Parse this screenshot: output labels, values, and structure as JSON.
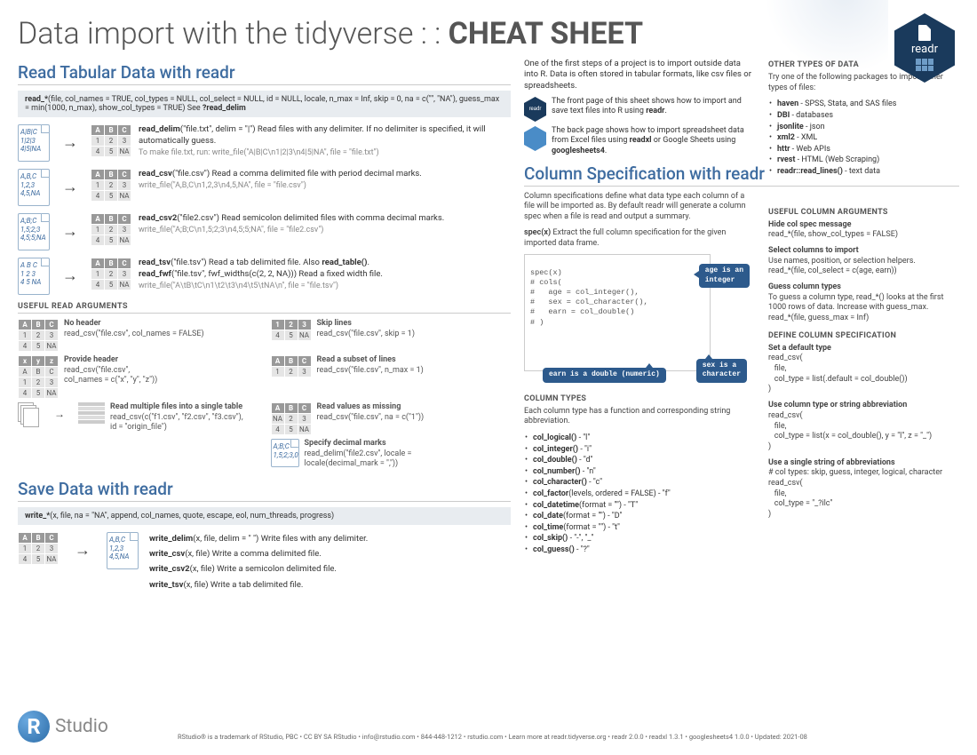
{
  "page": {
    "title_light": "Data import with the tidyverse : : ",
    "title_bold": "CHEAT SHEET"
  },
  "hex": {
    "label": "readr"
  },
  "read_section": {
    "heading": "Read Tabular Data with readr",
    "syntax": {
      "bold": "read_*",
      "rest": "(file, col_names = TRUE, col_types = NULL, col_select = NULL, id = NULL, locale, n_max = Inf, skip = 0, na = c(\"\", \"NA\"), guess_max = min(1000, n_max), show_col_types = TRUE) See ",
      "trail": "?read_delim"
    },
    "rows": [
      {
        "file": "A|B|C\n1|2|3\n4|5|NA",
        "func": "read_delim",
        "args": "(\"file.txt\", delim = \"|\")",
        "desc": " Read files with any delimiter. If no delimiter is specified, it will automatically guess.",
        "sub": "To make file.txt, run: write_file(\"A|B|C\\n1|2|3\\n4|5|NA\", file = \"file.txt\")"
      },
      {
        "file": "A,B,C\n1,2,3\n4,5,NA",
        "func": "read_csv",
        "args": "(\"file.csv\")",
        "desc": " Read a comma delimited file with period decimal marks.",
        "sub": "write_file(\"A,B,C\\n1,2,3\\n4,5,NA\", file = \"file.csv\")"
      },
      {
        "file": "A;B;C\n1,5;2;3\n4,5;5;NA",
        "func": "read_csv2",
        "args": "(\"file2.csv\")",
        "desc": " Read semicolon delimited files with comma decimal marks.",
        "sub": "write_file(\"A;B;C\\n1,5;2;3\\n4,5;5;NA\", file = \"file2.csv\")"
      },
      {
        "file": "A B C\n1 2 3\n4 5 NA",
        "func": "read_tsv",
        "args": "(\"file.tsv\")",
        "desc": " Read a tab delimited file. Also ",
        "extra_bold": "read_table()",
        "extra": ". ",
        "func2": "read_fwf",
        "args2": "(\"file.tsv\", fwf_widths(c(2, 2, NA)))",
        "desc2": " Read a fixed width file.",
        "sub": "write_file(\"A\\tB\\tC\\n1\\t2\\t3\\n4\\t5\\tNA\\n\", file = \"file.tsv\")"
      }
    ]
  },
  "useful_args": {
    "heading": "USEFUL READ ARGUMENTS",
    "left": [
      {
        "title": "No header",
        "code": "read_csv(\"file.csv\", col_names = FALSE)"
      },
      {
        "title": "Provide header",
        "code": "read_csv(\"file.csv\",\n    col_names = c(\"x\", \"y\", \"z\"))"
      },
      {
        "title": "Read multiple files into a single table",
        "code": "read_csv(c(\"f1.csv\", \"f2.csv\", \"f3.csv\"),\n    id = \"origin_file\")"
      }
    ],
    "right": [
      {
        "title": "Skip lines",
        "code": "read_csv(\"file.csv\", skip = 1)"
      },
      {
        "title": "Read a subset of lines",
        "code": "read_csv(\"file.csv\", n_max = 1)"
      },
      {
        "title": "Read values as missing",
        "code": "read_csv(\"file.csv\", na = c(\"1\"))"
      },
      {
        "title": "Specify decimal marks",
        "code": "read_delim(\"file2.csv\", locale =\n    locale(decimal_mark = \",\"))"
      }
    ]
  },
  "save_section": {
    "heading": "Save Data with readr",
    "syntax": {
      "bold": "write_*",
      "rest": "(x, file, na = \"NA\", append, col_names, quote, escape, eol, num_threads, progress)"
    },
    "file": "A,B,C\n1,2,3\n4,5,NA",
    "items": [
      {
        "b": "write_delim",
        "rest": "(x, file, delim = \" \") Write files with any delimiter."
      },
      {
        "b": "write_csv",
        "rest": "(x, file) Write a comma delimited file."
      },
      {
        "b": "write_csv2",
        "rest": "(x, file) Write a semicolon delimited file."
      },
      {
        "b": "write_tsv",
        "rest": "(x, file) Write a tab delimited file."
      }
    ]
  },
  "intro": {
    "text": "One of the first steps of a project is to import outside data into R. Data is often stored in tabular formats, like csv files or spreadsheets.",
    "p1": "The front page of this sheet shows how to import and save text files into R using ",
    "p1b": "readr",
    "p1e": ".",
    "p2": "The back page shows how to import spreadsheet data from Excel files using ",
    "p2b": "readxl",
    "p2m": " or Google Sheets using ",
    "p2b2": "googlesheets4",
    "p2e": "."
  },
  "other_types": {
    "heading": "OTHER TYPES OF DATA",
    "lead": "Try one of the following packages to import other types of files:",
    "items": [
      {
        "b": "haven",
        "d": " - SPSS, Stata, and SAS files"
      },
      {
        "b": "DBI",
        "d": " - databases"
      },
      {
        "b": "jsonlite",
        "d": " - json"
      },
      {
        "b": "xml2",
        "d": " - XML"
      },
      {
        "b": "httr",
        "d": " - Web APIs"
      },
      {
        "b": "rvest",
        "d": " - HTML (Web Scraping)"
      },
      {
        "b": "readr::read_lines()",
        "d": " - text data"
      }
    ]
  },
  "colspec": {
    "heading": "Column Specification with readr",
    "p1": "Column specifications define what data type each column of a file will be imported as. By default readr will generate a column spec when a file is read and output a summary.",
    "p2a": "spec(x)",
    "p2b": " Extract the full column specification for the given imported data frame.",
    "code": "spec(x)\n# cols(\n#   age = col_integer(),\n#   sex = col_character(),\n#   earn = col_double()\n# )",
    "callouts": {
      "c1": "age is an\ninteger",
      "c2": "sex is a\ncharacter",
      "c3": "earn is a double (numeric)"
    }
  },
  "coltypes": {
    "heading": "COLUMN TYPES",
    "lead": "Each column type has a function and corresponding string abbreviation.",
    "items": [
      {
        "b": "col_logical()",
        "d": " - \"l\""
      },
      {
        "b": "col_integer()",
        "d": " - \"i\""
      },
      {
        "b": "col_double()",
        "d": " - \"d\""
      },
      {
        "b": "col_number()",
        "d": " - \"n\""
      },
      {
        "b": "col_character()",
        "d": " - \"c\""
      },
      {
        "b": "col_factor",
        "d": "(levels, ordered = FALSE) - \"f\""
      },
      {
        "b": "col_datetime",
        "d": "(format = \"\") - \"T\""
      },
      {
        "b": "col_date",
        "d": "(format = \"\") - \"D\""
      },
      {
        "b": "col_time",
        "d": "(format = \"\") - \"t\""
      },
      {
        "b": "col_skip()",
        "d": " - \"-\", \"_\""
      },
      {
        "b": "col_guess()",
        "d": " - \"?\""
      }
    ]
  },
  "useful_col_args": {
    "heading": "USEFUL COLUMN ARGUMENTS",
    "items": [
      {
        "t": "Hide col spec message",
        "c": "read_*(file, show_col_types = FALSE)"
      },
      {
        "t": "Select columns to import",
        "l": "Use names, position, or selection helpers.",
        "c": "read_*(file, col_select = c(age, earn))"
      },
      {
        "t": "Guess column types",
        "l": "To guess a column type, read_*() looks at the first 1000 rows of data. Increase with guess_max.",
        "c": "read_*(file, guess_max = Inf)"
      }
    ]
  },
  "define_col": {
    "heading": "DEFINE COLUMN SPECIFICATION",
    "items": [
      {
        "t": "Set a default type",
        "c": "read_csv(\n   file,\n   col_type = list(.default = col_double())\n)"
      },
      {
        "t": "Use column type or string abbreviation",
        "c": "read_csv(\n   file,\n   col_type = list(x = col_double(), y = \"l\", z = \"_\")\n)"
      },
      {
        "t": "Use a single string of abbreviations",
        "l": "# col types: skip, guess, integer, logical, character",
        "c": "read_csv(\n   file,\n   col_type = \"_?ilc\"\n)"
      }
    ]
  },
  "footer": "RStudio® is a trademark of RStudio, PBC  •  CC BY SA  RStudio  •  info@rstudio.com  •  844-448-1212  •  rstudio.com  •  Learn more at readr.tidyverse.org  •  readr  2.0.0  •  readxl  1.3.1  •  googlesheets4  1.0.0  •  Updated:  2021-08"
}
